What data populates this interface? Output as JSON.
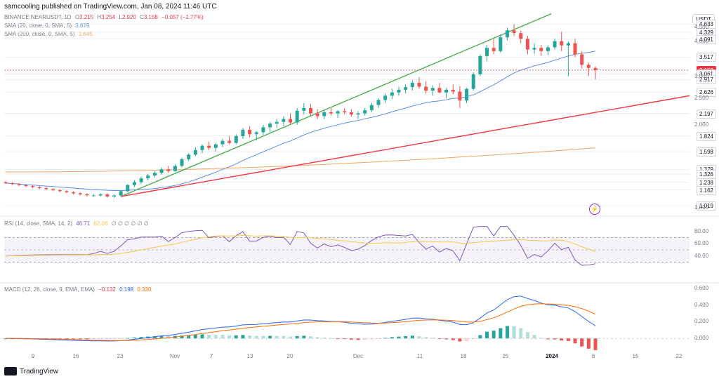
{
  "header": {
    "publisher_line": "samcooling published on TradingView.com, Jan 08, 2024 11:46 UTC"
  },
  "symbol_legend": {
    "symbol": "BINANCE:NEARUSDT, 1D",
    "o_label": "O",
    "o": "3.215",
    "h_label": "H",
    "h": "3.254",
    "l_label": "L",
    "l": "2.920",
    "c_label": "C",
    "c": "3.158",
    "change": "−0.057 (−1.77%)"
  },
  "sma20_legend": {
    "label": "SMA (20, close, 0, SMA, 5)",
    "value": "3.679"
  },
  "sma200_legend": {
    "label": "SMA (200, close, 0, SMA, 5)",
    "value": "1.645"
  },
  "rsi_legend": {
    "label": "RSI (14, close, SMA, 14, 2)",
    "value": "46.71",
    "ma_value": "62.06",
    "extra": "∅ ∅ ∅ ∅ ∅ ∅"
  },
  "macd_legend": {
    "label": "MACD (12, 26, close, 9, EMA, EMA)",
    "hist": "−0.132",
    "macd": "0.198",
    "signal": "0.330"
  },
  "currency_badge": "USDT",
  "price_axis_ticks": [
    "4.500",
    "4.000",
    "3.000",
    "2.500",
    "2.000",
    "1.000"
  ],
  "price_tags": [
    {
      "text": "4.633",
      "color": "#131722"
    },
    {
      "text": "4.329",
      "color": "#131722"
    },
    {
      "text": "4.091",
      "color": "#131722"
    },
    {
      "text": "3.517",
      "color": "#131722"
    },
    {
      "text": "3.158",
      "color": "#f23645"
    },
    {
      "text": "3.061",
      "color": "#131722"
    },
    {
      "text": "2.917",
      "color": "#131722"
    },
    {
      "text": "2.626",
      "color": "#131722"
    },
    {
      "text": "2.197",
      "color": "#131722"
    },
    {
      "text": "1.824",
      "color": "#131722"
    },
    {
      "text": "1.598",
      "color": "#131722"
    },
    {
      "text": "1.379",
      "color": "#131722"
    },
    {
      "text": "1.326",
      "color": "#131722"
    },
    {
      "text": "1.238",
      "color": "#131722"
    },
    {
      "text": "1.162",
      "color": "#131722"
    },
    {
      "text": "1.019",
      "color": "#131722"
    }
  ],
  "rsi_axis_ticks": [
    "80.00",
    "60.00",
    "40.00"
  ],
  "macd_axis_ticks": [
    "0.600",
    "0.400",
    "0.200",
    "0.000"
  ],
  "time_axis": [
    "9",
    "16",
    "23",
    "Nov",
    "7",
    "13",
    "20",
    "Dec",
    "11",
    "18",
    "25",
    "2024",
    "8",
    "15",
    "22"
  ],
  "footer": {
    "brand": "TradingView"
  },
  "colors": {
    "up": "#26a69a",
    "down": "#ef5350",
    "sma20": "#5b8def",
    "sma200": "#f7a35c",
    "trend_green": "#4caf50",
    "trend_red": "#f23645",
    "rsi": "#7e57c2",
    "rsi_ma": "#f7c948"
  },
  "chart_data": {
    "type": "candlestick",
    "candles": [
      [
        1.24,
        1.25,
        1.22,
        1.23
      ],
      [
        1.23,
        1.24,
        1.21,
        1.22
      ],
      [
        1.22,
        1.23,
        1.2,
        1.21
      ],
      [
        1.21,
        1.22,
        1.19,
        1.2
      ],
      [
        1.2,
        1.21,
        1.18,
        1.19
      ],
      [
        1.19,
        1.2,
        1.17,
        1.18
      ],
      [
        1.18,
        1.19,
        1.16,
        1.17
      ],
      [
        1.17,
        1.18,
        1.15,
        1.16
      ],
      [
        1.16,
        1.17,
        1.14,
        1.15
      ],
      [
        1.15,
        1.16,
        1.13,
        1.14
      ],
      [
        1.14,
        1.15,
        1.12,
        1.13
      ],
      [
        1.13,
        1.14,
        1.11,
        1.12
      ],
      [
        1.12,
        1.13,
        1.1,
        1.11
      ],
      [
        1.11,
        1.12,
        1.1,
        1.11
      ],
      [
        1.11,
        1.13,
        1.1,
        1.12
      ],
      [
        1.12,
        1.13,
        1.09,
        1.1
      ],
      [
        1.1,
        1.12,
        1.09,
        1.11
      ],
      [
        1.11,
        1.16,
        1.1,
        1.15
      ],
      [
        1.15,
        1.22,
        1.14,
        1.21
      ],
      [
        1.21,
        1.26,
        1.19,
        1.24
      ],
      [
        1.24,
        1.3,
        1.22,
        1.28
      ],
      [
        1.28,
        1.33,
        1.26,
        1.31
      ],
      [
        1.31,
        1.36,
        1.29,
        1.34
      ],
      [
        1.34,
        1.4,
        1.32,
        1.38
      ],
      [
        1.38,
        1.42,
        1.34,
        1.36
      ],
      [
        1.36,
        1.44,
        1.35,
        1.42
      ],
      [
        1.42,
        1.52,
        1.4,
        1.5
      ],
      [
        1.5,
        1.58,
        1.48,
        1.56
      ],
      [
        1.56,
        1.66,
        1.54,
        1.62
      ],
      [
        1.62,
        1.7,
        1.58,
        1.68
      ],
      [
        1.68,
        1.74,
        1.62,
        1.65
      ],
      [
        1.65,
        1.72,
        1.6,
        1.7
      ],
      [
        1.7,
        1.78,
        1.66,
        1.75
      ],
      [
        1.75,
        1.82,
        1.7,
        1.72
      ],
      [
        1.72,
        1.85,
        1.7,
        1.82
      ],
      [
        1.82,
        1.95,
        1.78,
        1.92
      ],
      [
        1.92,
        1.98,
        1.8,
        1.85
      ],
      [
        1.85,
        1.9,
        1.76,
        1.88
      ],
      [
        1.88,
        2.0,
        1.84,
        1.96
      ],
      [
        1.96,
        2.05,
        1.88,
        2.02
      ],
      [
        2.02,
        2.1,
        1.95,
        2.05
      ],
      [
        2.05,
        2.15,
        1.98,
        2.1
      ],
      [
        2.1,
        2.2,
        2.0,
        2.04
      ],
      [
        2.04,
        2.3,
        2.0,
        2.25
      ],
      [
        2.25,
        2.4,
        2.18,
        2.3
      ],
      [
        2.3,
        2.38,
        2.15,
        2.2
      ],
      [
        2.2,
        2.28,
        2.1,
        2.15
      ],
      [
        2.15,
        2.25,
        2.1,
        2.22
      ],
      [
        2.22,
        2.3,
        2.16,
        2.2
      ],
      [
        2.2,
        2.26,
        2.12,
        2.24
      ],
      [
        2.24,
        2.3,
        2.18,
        2.22
      ],
      [
        2.22,
        2.28,
        2.14,
        2.18
      ],
      [
        2.18,
        2.24,
        2.1,
        2.2
      ],
      [
        2.2,
        2.3,
        2.16,
        2.26
      ],
      [
        2.26,
        2.4,
        2.22,
        2.36
      ],
      [
        2.36,
        2.5,
        2.3,
        2.46
      ],
      [
        2.46,
        2.6,
        2.4,
        2.55
      ],
      [
        2.55,
        2.7,
        2.48,
        2.62
      ],
      [
        2.62,
        2.75,
        2.55,
        2.68
      ],
      [
        2.68,
        2.8,
        2.6,
        2.74
      ],
      [
        2.74,
        2.9,
        2.66,
        2.84
      ],
      [
        2.84,
        2.98,
        2.7,
        2.75
      ],
      [
        2.75,
        2.88,
        2.6,
        2.66
      ],
      [
        2.66,
        2.78,
        2.55,
        2.72
      ],
      [
        2.72,
        2.84,
        2.6,
        2.62
      ],
      [
        2.62,
        2.72,
        2.5,
        2.68
      ],
      [
        2.68,
        2.8,
        2.58,
        2.64
      ],
      [
        2.64,
        2.76,
        2.3,
        2.45
      ],
      [
        2.45,
        2.72,
        2.4,
        2.7
      ],
      [
        2.7,
        3.1,
        2.66,
        3.05
      ],
      [
        3.05,
        3.6,
        3.0,
        3.55
      ],
      [
        3.55,
        3.9,
        3.4,
        3.8
      ],
      [
        3.8,
        4.1,
        3.6,
        3.7
      ],
      [
        3.7,
        4.25,
        3.65,
        4.15
      ],
      [
        4.15,
        4.5,
        4.05,
        4.4
      ],
      [
        4.4,
        4.63,
        4.2,
        4.3
      ],
      [
        4.3,
        4.4,
        3.95,
        4.1
      ],
      [
        4.1,
        4.2,
        3.6,
        3.75
      ],
      [
        3.75,
        3.95,
        3.62,
        3.8
      ],
      [
        3.8,
        3.9,
        3.55,
        3.7
      ],
      [
        3.7,
        3.88,
        3.58,
        3.82
      ],
      [
        3.82,
        4.1,
        3.75,
        4.02
      ],
      [
        4.02,
        4.35,
        3.7,
        3.88
      ],
      [
        3.88,
        4.0,
        3.0,
        3.95
      ],
      [
        3.95,
        4.1,
        3.52,
        3.6
      ],
      [
        3.6,
        3.7,
        3.2,
        3.3
      ],
      [
        3.3,
        3.36,
        3.0,
        3.215
      ],
      [
        3.215,
        3.254,
        2.92,
        3.158
      ]
    ]
  }
}
